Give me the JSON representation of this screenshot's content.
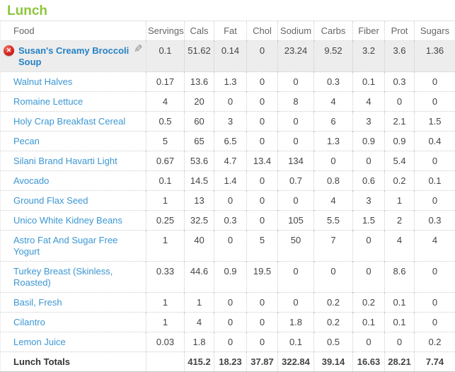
{
  "section": {
    "title": "Lunch"
  },
  "icons": {
    "delete": "✕",
    "edit": "✎"
  },
  "colors": {
    "title_green": "#8cc63f",
    "link_blue": "#3b97d3",
    "selected_link_blue": "#2581c4",
    "selected_row_bg": "#ededed",
    "delete_red": "#d31f1f"
  },
  "table": {
    "columns": [
      "Food",
      "Servings",
      "Cals",
      "Fat",
      "Chol",
      "Sodium",
      "Carbs",
      "Fiber",
      "Prot",
      "Sugars"
    ],
    "rows": [
      {
        "name": "Susan's Creamy Broccoli Soup",
        "selected": true,
        "values": [
          "0.1",
          "51.62",
          "0.14",
          "0",
          "23.24",
          "9.52",
          "3.2",
          "3.6",
          "1.36"
        ]
      },
      {
        "name": "Walnut Halves",
        "values": [
          "0.17",
          "13.6",
          "1.3",
          "0",
          "0",
          "0.3",
          "0.1",
          "0.3",
          "0"
        ]
      },
      {
        "name": "Romaine Lettuce",
        "values": [
          "4",
          "20",
          "0",
          "0",
          "8",
          "4",
          "4",
          "0",
          "0"
        ]
      },
      {
        "name": "Holy Crap Breakfast Cereal",
        "values": [
          "0.5",
          "60",
          "3",
          "0",
          "0",
          "6",
          "3",
          "2.1",
          "1.5"
        ]
      },
      {
        "name": "Pecan",
        "values": [
          "5",
          "65",
          "6.5",
          "0",
          "0",
          "1.3",
          "0.9",
          "0.9",
          "0.4"
        ]
      },
      {
        "name": "Silani Brand Havarti Light",
        "values": [
          "0.67",
          "53.6",
          "4.7",
          "13.4",
          "134",
          "0",
          "0",
          "5.4",
          "0"
        ]
      },
      {
        "name": "Avocado",
        "values": [
          "0.1",
          "14.5",
          "1.4",
          "0",
          "0.7",
          "0.8",
          "0.6",
          "0.2",
          "0.1"
        ]
      },
      {
        "name": "Ground Flax Seed",
        "values": [
          "1",
          "13",
          "0",
          "0",
          "0",
          "4",
          "3",
          "1",
          "0"
        ]
      },
      {
        "name": "Unico White Kidney Beans",
        "values": [
          "0.25",
          "32.5",
          "0.3",
          "0",
          "105",
          "5.5",
          "1.5",
          "2",
          "0.3"
        ]
      },
      {
        "name": "Astro Fat And Sugar Free Yogurt",
        "values": [
          "1",
          "40",
          "0",
          "5",
          "50",
          "7",
          "0",
          "4",
          "4"
        ]
      },
      {
        "name": "Turkey Breast (Skinless, Roasted)",
        "values": [
          "0.33",
          "44.6",
          "0.9",
          "19.5",
          "0",
          "0",
          "0",
          "8.6",
          "0"
        ]
      },
      {
        "name": "Basil, Fresh",
        "values": [
          "1",
          "1",
          "0",
          "0",
          "0",
          "0.2",
          "0.2",
          "0.1",
          "0"
        ]
      },
      {
        "name": "Cilantro",
        "values": [
          "1",
          "4",
          "0",
          "0",
          "1.8",
          "0.2",
          "0.1",
          "0.1",
          "0"
        ]
      },
      {
        "name": "Lemon Juice",
        "values": [
          "0.03",
          "1.8",
          "0",
          "0",
          "0.1",
          "0.5",
          "0",
          "0",
          "0.2"
        ]
      }
    ],
    "totals": {
      "label": "Lunch Totals",
      "values": [
        "",
        "415.2",
        "18.23",
        "37.87",
        "322.84",
        "39.14",
        "16.63",
        "28.21",
        "7.74"
      ]
    }
  }
}
